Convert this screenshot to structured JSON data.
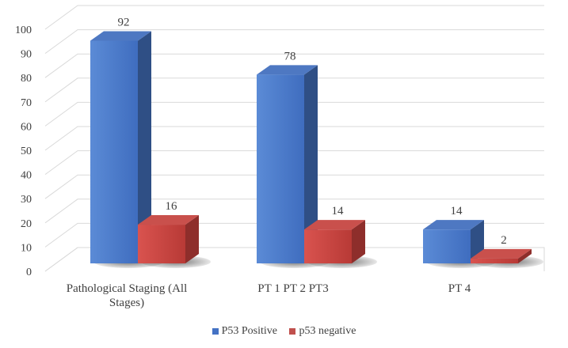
{
  "chart_data": {
    "type": "bar",
    "title": "",
    "xlabel": "",
    "ylabel": "",
    "ylim": [
      0,
      100
    ],
    "yticks": [
      0,
      10,
      20,
      30,
      40,
      50,
      60,
      70,
      80,
      90,
      100
    ],
    "categories": [
      "Pathological Staging (All Stages)",
      "PT 1 PT 2 PT3",
      "PT 4"
    ],
    "series": [
      {
        "name": "P53 Positive",
        "values": [
          92,
          78,
          14
        ],
        "color": "#4472C4"
      },
      {
        "name": "p53 negative",
        "values": [
          16,
          14,
          2
        ],
        "color": "#C0504D"
      }
    ],
    "grid": true,
    "legend": "bottom",
    "style": "3d-clustered-column"
  }
}
